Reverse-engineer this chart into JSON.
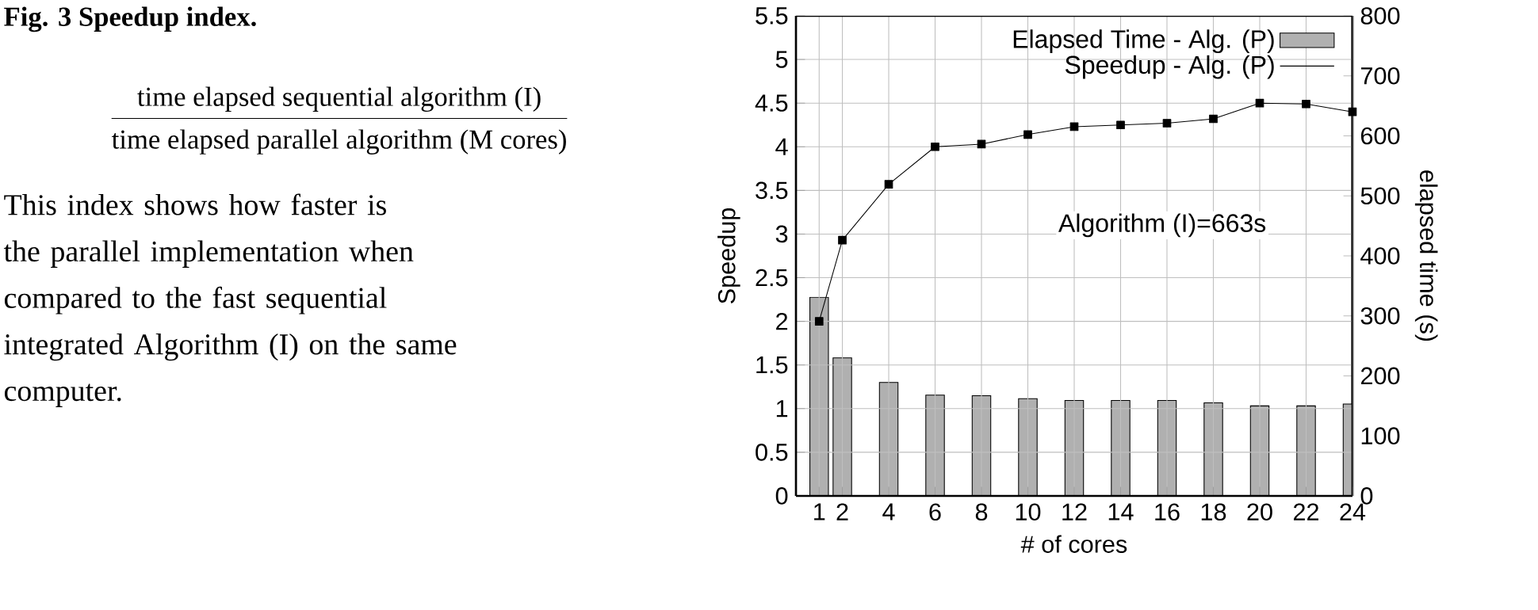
{
  "chart_data": {
    "type": "bar",
    "x": [
      1,
      2,
      4,
      6,
      8,
      10,
      12,
      14,
      16,
      18,
      20,
      22,
      24
    ],
    "series": [
      {
        "name": "Elapsed Time - Alg. (P)",
        "axis": "y2",
        "color": "#b0b0b0",
        "values": [
          331,
          230,
          189,
          168,
          167,
          162,
          159,
          159,
          159,
          155,
          150,
          150,
          153
        ]
      },
      {
        "name": "Speedup - Alg. (P)",
        "type": "line",
        "color": "#000000",
        "values": [
          2.0,
          2.93,
          3.57,
          4.0,
          4.03,
          4.14,
          4.23,
          4.25,
          4.27,
          4.32,
          4.5,
          4.49,
          4.4
        ]
      }
    ],
    "xlabel": "# of cores",
    "ylabel": "Speedup",
    "y2label": "elapsed time (s)",
    "xlim": [
      0,
      24
    ],
    "xticks": [
      1,
      2,
      4,
      6,
      8,
      10,
      12,
      14,
      16,
      18,
      20,
      22,
      24
    ],
    "ylim": [
      0,
      5.5
    ],
    "yticks": [
      0,
      0.5,
      1,
      1.5,
      2,
      2.5,
      3,
      3.5,
      4,
      4.5,
      5,
      5.5
    ],
    "y2lim": [
      0,
      800
    ],
    "y2ticks": [
      0,
      100,
      200,
      300,
      400,
      500,
      600,
      700,
      800
    ],
    "grid": true,
    "legend": "top right",
    "marker": "square",
    "annotations": [
      "Fig. 3 Speedup index.",
      "time elapsed sequential algorithm (I)",
      "time elapsed parallel algorithm (M cores)",
      "This index shows how faster is the parallel implementation when compared to the fast sequential integrated Algorithm (I) on the same computer.",
      "Algorithm (I)=663s"
    ]
  }
}
